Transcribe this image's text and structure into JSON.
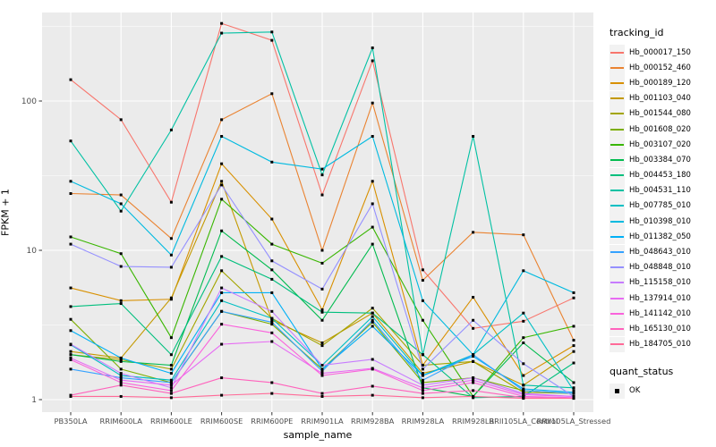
{
  "chart_data": {
    "type": "line",
    "xlabel": "sample_name",
    "ylabel": "FPKM + 1",
    "y_scale": "log10",
    "y_ticks": [
      1,
      10,
      100
    ],
    "y_minor_ticks": [
      3.162,
      31.623,
      316.228
    ],
    "ylim": [
      1,
      392
    ],
    "grid": true,
    "panel_background": "#EBEBEB",
    "grid_color": "#FFFFFF",
    "point_color": "#000000",
    "point_shape": "square",
    "x_categories": [
      "PB350LA",
      "RRIM600LA",
      "RRIM600LE",
      "RRIM600SE",
      "RRIM600PE",
      "RRIM901LA",
      "RRIM928BA",
      "RRIM928LA",
      "RRIM928LB",
      "RRII105LA_Control",
      "RRII105LA_Stressed"
    ],
    "legend": {
      "position": "right",
      "color_title": "tracking_id",
      "shape_title": "quant_status",
      "shape_entries": [
        {
          "label": "OK",
          "shape": "square",
          "color": "#000000"
        }
      ]
    },
    "series": [
      {
        "name": "Hb_000017_150",
        "color": "#F8766D",
        "values": [
          139,
          75,
          21,
          331,
          255,
          23.5,
          186,
          7.4,
          3.0,
          3.35,
          4.8
        ]
      },
      {
        "name": "Hb_000152_460",
        "color": "#EA8331",
        "values": [
          24,
          23.5,
          12,
          75,
          112,
          10,
          97,
          6.3,
          13.2,
          12.7,
          2.5
        ]
      },
      {
        "name": "Hb_000189_120",
        "color": "#D89000",
        "values": [
          5.6,
          4.6,
          4.7,
          38,
          16.2,
          4.0,
          29,
          1.7,
          4.85,
          1.45,
          2.3
        ]
      },
      {
        "name": "Hb_001103_040",
        "color": "#C49A00",
        "values": [
          2.1,
          1.9,
          4.8,
          29,
          3.4,
          2.4,
          3.8,
          1.5,
          1.8,
          1.25,
          2.1
        ]
      },
      {
        "name": "Hb_001544_080",
        "color": "#A3A500",
        "values": [
          2.0,
          1.85,
          1.6,
          7.3,
          3.5,
          2.3,
          4.1,
          1.7,
          1.8,
          1.12,
          1.1
        ]
      },
      {
        "name": "Hb_001608_020",
        "color": "#7CAE00",
        "values": [
          3.45,
          1.6,
          1.3,
          3.9,
          3.2,
          1.6,
          3.3,
          1.3,
          1.4,
          1.15,
          1.1
        ]
      },
      {
        "name": "Hb_003107_020",
        "color": "#39B600",
        "values": [
          12.3,
          9.5,
          2.6,
          22,
          11,
          8.2,
          14.3,
          3.4,
          1.05,
          2.6,
          3.1
        ]
      },
      {
        "name": "Hb_003384_070",
        "color": "#00BB4E",
        "values": [
          2.0,
          1.8,
          1.7,
          13.5,
          7.4,
          3.4,
          11,
          1.2,
          1.05,
          2.4,
          1.3
        ]
      },
      {
        "name": "Hb_004453_180",
        "color": "#00BF7D",
        "values": [
          4.2,
          4.4,
          2.0,
          9.1,
          6.4,
          3.85,
          3.8,
          2.0,
          1.03,
          1.05,
          1.76
        ]
      },
      {
        "name": "Hb_004531_110",
        "color": "#00C1A3",
        "values": [
          54,
          18.3,
          64,
          285,
          290,
          32,
          227,
          2.0,
          58,
          1.25,
          1.2
        ]
      },
      {
        "name": "Hb_007785_010",
        "color": "#00BFC4",
        "values": [
          2.33,
          1.45,
          1.35,
          4.6,
          3.5,
          1.7,
          3.6,
          1.45,
          2.0,
          3.8,
          1.15
        ]
      },
      {
        "name": "Hb_010398_010",
        "color": "#00BAE0",
        "values": [
          29,
          20.5,
          9.3,
          58,
          39,
          35,
          58,
          4.6,
          2.0,
          7.3,
          5.2
        ]
      },
      {
        "name": "Hb_011382_050",
        "color": "#00B0F6",
        "values": [
          2.9,
          1.9,
          1.5,
          5.2,
          5.2,
          1.6,
          3.1,
          1.45,
          1.95,
          1.18,
          1.12
        ]
      },
      {
        "name": "Hb_048643_010",
        "color": "#35A2FF",
        "values": [
          1.6,
          1.4,
          1.3,
          3.9,
          3.3,
          1.55,
          3.4,
          1.35,
          2.0,
          1.15,
          1.1
        ]
      },
      {
        "name": "Hb_048848_010",
        "color": "#9590FF",
        "values": [
          11,
          7.8,
          7.7,
          27.4,
          8.5,
          5.5,
          20.5,
          1.6,
          3.4,
          1.74,
          1.05
        ]
      },
      {
        "name": "Hb_115158_010",
        "color": "#C77CFF",
        "values": [
          2.35,
          1.5,
          1.2,
          5.6,
          3.9,
          1.7,
          1.86,
          1.25,
          1.4,
          1.1,
          1.05
        ]
      },
      {
        "name": "Hb_137914_010",
        "color": "#E76BF3",
        "values": [
          1.9,
          1.35,
          1.25,
          2.35,
          2.45,
          1.5,
          1.62,
          1.2,
          1.35,
          1.08,
          1.05
        ]
      },
      {
        "name": "Hb_141142_010",
        "color": "#FA62DB",
        "values": [
          1.85,
          1.3,
          1.15,
          3.2,
          2.8,
          1.45,
          1.6,
          1.15,
          1.3,
          1.05,
          1.03
        ]
      },
      {
        "name": "Hb_165130_010",
        "color": "#FF62BC",
        "values": [
          1.07,
          1.25,
          1.1,
          1.4,
          1.3,
          1.1,
          1.23,
          1.1,
          1.15,
          1.03,
          1.02
        ]
      },
      {
        "name": "Hb_184705_010",
        "color": "#FF6A98",
        "values": [
          1.05,
          1.05,
          1.03,
          1.07,
          1.1,
          1.05,
          1.07,
          1.03,
          1.05,
          1.02,
          1.02
        ]
      }
    ]
  }
}
